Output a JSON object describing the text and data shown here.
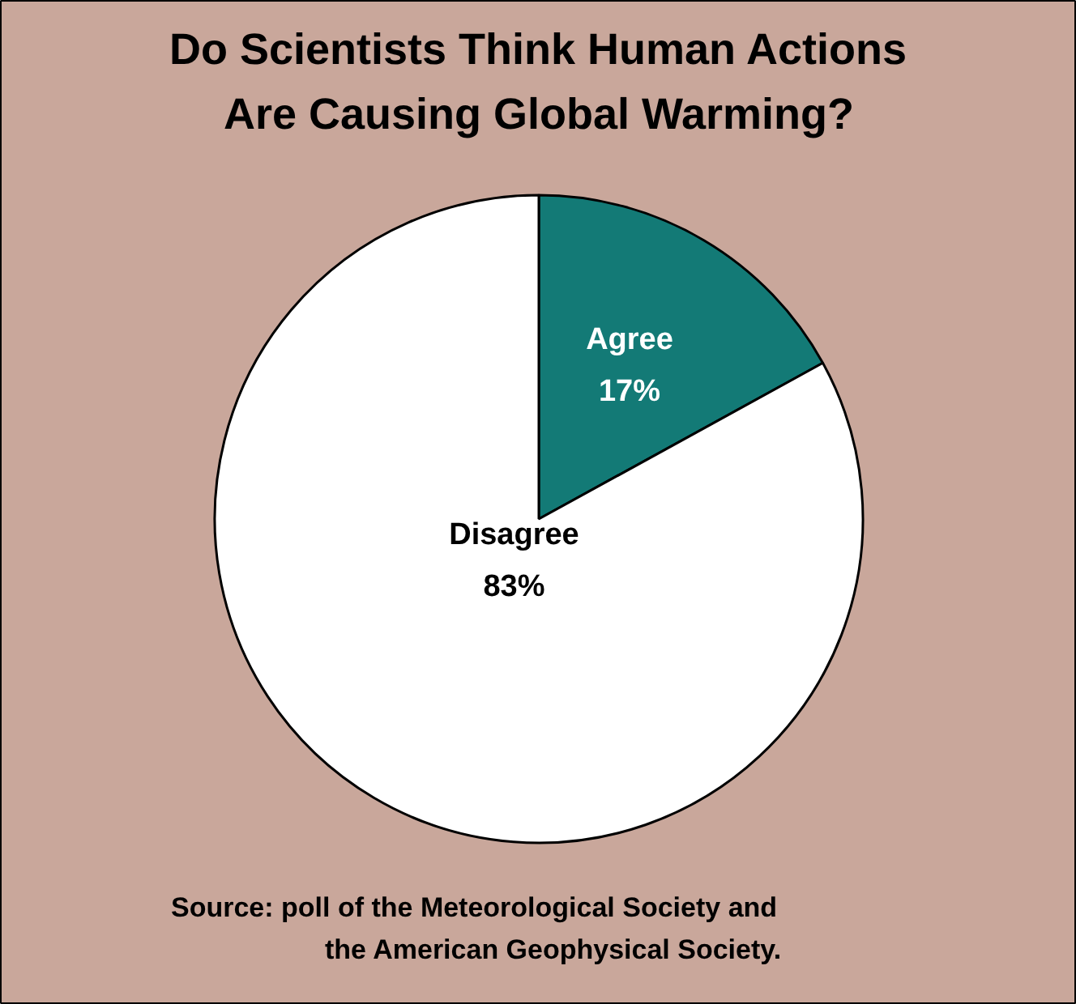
{
  "chart_data": {
    "type": "pie",
    "title": "Do Scientists Think Human Actions Are Causing Global Warming?",
    "categories": [
      "Agree",
      "Disagree"
    ],
    "values": [
      17,
      83
    ],
    "colors": [
      "#137a76",
      "#ffffff"
    ],
    "value_labels": [
      "17%",
      "83%"
    ],
    "annotations": [
      "Source:  poll of the Meteorological Society and the American Geophysical Society."
    ]
  }
}
